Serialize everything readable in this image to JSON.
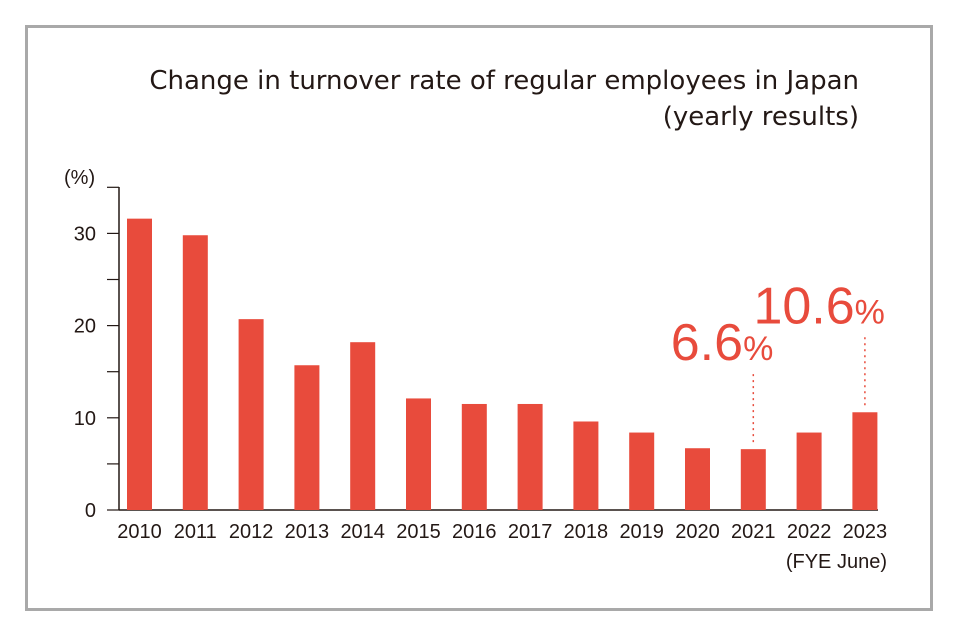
{
  "chart_data": {
    "type": "bar",
    "title": "Change in turnover rate of regular employees in Japan",
    "subtitle": "(yearly results)",
    "ylabel": "(%)",
    "xnote": "(FYE June)",
    "categories": [
      "2010",
      "2011",
      "2012",
      "2013",
      "2014",
      "2015",
      "2016",
      "2017",
      "2018",
      "2019",
      "2020",
      "2021",
      "2022",
      "2023"
    ],
    "values": [
      31.6,
      29.8,
      20.7,
      15.7,
      18.2,
      12.1,
      11.5,
      11.5,
      9.6,
      8.4,
      6.7,
      6.6,
      8.4,
      10.6
    ],
    "ylim": [
      0,
      35
    ],
    "yticks": [
      0,
      10,
      20,
      30
    ],
    "bar_color": "#e84b3c",
    "highlights": [
      {
        "category": "2021",
        "number": "6.6",
        "unit": "%"
      },
      {
        "category": "2023",
        "number": "10.6",
        "unit": "%"
      }
    ]
  }
}
